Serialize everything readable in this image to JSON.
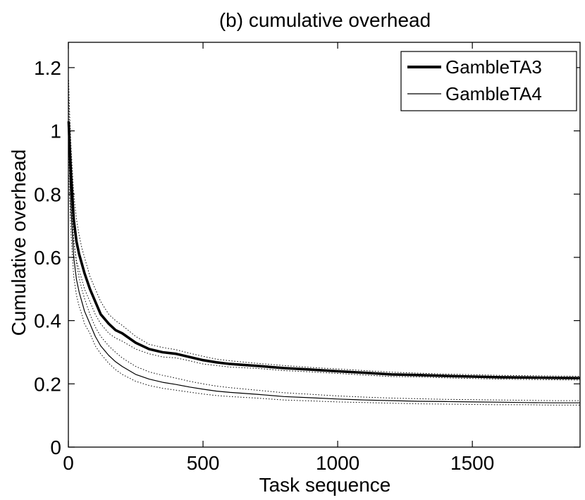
{
  "chart_data": {
    "type": "line",
    "title": "(b)  cumulative overhead",
    "xlabel": "Task sequence",
    "ylabel": "Cumulative overhead",
    "xlim": [
      0,
      1900
    ],
    "ylim": [
      0,
      1.28
    ],
    "xticks": [
      0,
      500,
      1000,
      1500
    ],
    "yticks": [
      0,
      0.2,
      0.4,
      0.6,
      0.8,
      1,
      1.2
    ],
    "xtick_labels": [
      "0",
      "500",
      "1000",
      "1500"
    ],
    "ytick_labels": [
      "0",
      "0.2",
      "0.4",
      "0.6",
      "0.8",
      "1",
      "1.2"
    ],
    "grid": false,
    "legend_position": "top-right",
    "colors": {
      "line": "#000000",
      "band": "#000000"
    },
    "series": [
      {
        "name": "GambleTA3",
        "style": "thick",
        "x": [
          1,
          5,
          10,
          20,
          30,
          40,
          50,
          60,
          80,
          100,
          120,
          150,
          175,
          200,
          250,
          300,
          350,
          400,
          450,
          500,
          550,
          600,
          700,
          800,
          900,
          1000,
          1100,
          1200,
          1300,
          1400,
          1500,
          1600,
          1700,
          1800,
          1900
        ],
        "y": [
          1.03,
          0.95,
          0.86,
          0.72,
          0.65,
          0.61,
          0.58,
          0.55,
          0.5,
          0.46,
          0.42,
          0.39,
          0.37,
          0.36,
          0.33,
          0.31,
          0.3,
          0.295,
          0.285,
          0.275,
          0.268,
          0.263,
          0.257,
          0.25,
          0.245,
          0.24,
          0.235,
          0.23,
          0.228,
          0.225,
          0.223,
          0.221,
          0.22,
          0.219,
          0.218
        ],
        "band_upper": [
          1.16,
          1.05,
          0.95,
          0.8,
          0.72,
          0.67,
          0.63,
          0.6,
          0.54,
          0.5,
          0.46,
          0.42,
          0.4,
          0.385,
          0.35,
          0.325,
          0.315,
          0.308,
          0.297,
          0.287,
          0.278,
          0.273,
          0.265,
          0.258,
          0.252,
          0.247,
          0.242,
          0.237,
          0.234,
          0.231,
          0.229,
          0.227,
          0.226,
          0.225,
          0.224
        ],
        "band_lower": [
          0.92,
          0.85,
          0.77,
          0.65,
          0.59,
          0.56,
          0.53,
          0.5,
          0.46,
          0.42,
          0.39,
          0.36,
          0.345,
          0.335,
          0.31,
          0.295,
          0.285,
          0.282,
          0.273,
          0.263,
          0.258,
          0.253,
          0.249,
          0.242,
          0.238,
          0.233,
          0.228,
          0.223,
          0.222,
          0.219,
          0.217,
          0.215,
          0.214,
          0.213,
          0.212
        ]
      },
      {
        "name": "GambleTA4",
        "style": "thin",
        "x": [
          1,
          5,
          10,
          20,
          30,
          40,
          50,
          60,
          80,
          100,
          120,
          150,
          175,
          200,
          250,
          300,
          350,
          400,
          450,
          500,
          550,
          600,
          700,
          800,
          900,
          1000,
          1100,
          1200,
          1300,
          1400,
          1500,
          1600,
          1700,
          1800,
          1900
        ],
        "y": [
          0.98,
          0.88,
          0.75,
          0.6,
          0.53,
          0.49,
          0.46,
          0.43,
          0.39,
          0.35,
          0.32,
          0.29,
          0.27,
          0.255,
          0.23,
          0.215,
          0.205,
          0.198,
          0.19,
          0.183,
          0.177,
          0.173,
          0.167,
          0.16,
          0.156,
          0.152,
          0.149,
          0.147,
          0.145,
          0.144,
          0.143,
          0.142,
          0.141,
          0.14,
          0.14
        ],
        "band_upper": [
          1.1,
          0.98,
          0.83,
          0.66,
          0.58,
          0.535,
          0.5,
          0.47,
          0.42,
          0.38,
          0.35,
          0.32,
          0.3,
          0.282,
          0.255,
          0.238,
          0.227,
          0.218,
          0.208,
          0.2,
          0.193,
          0.188,
          0.18,
          0.172,
          0.167,
          0.162,
          0.158,
          0.155,
          0.153,
          0.151,
          0.15,
          0.149,
          0.148,
          0.147,
          0.147
        ],
        "band_lower": [
          0.86,
          0.78,
          0.67,
          0.54,
          0.48,
          0.445,
          0.42,
          0.39,
          0.36,
          0.32,
          0.295,
          0.265,
          0.245,
          0.23,
          0.208,
          0.195,
          0.186,
          0.18,
          0.174,
          0.168,
          0.163,
          0.16,
          0.155,
          0.149,
          0.146,
          0.143,
          0.141,
          0.139,
          0.137,
          0.136,
          0.135,
          0.134,
          0.134,
          0.133,
          0.133
        ]
      }
    ]
  }
}
